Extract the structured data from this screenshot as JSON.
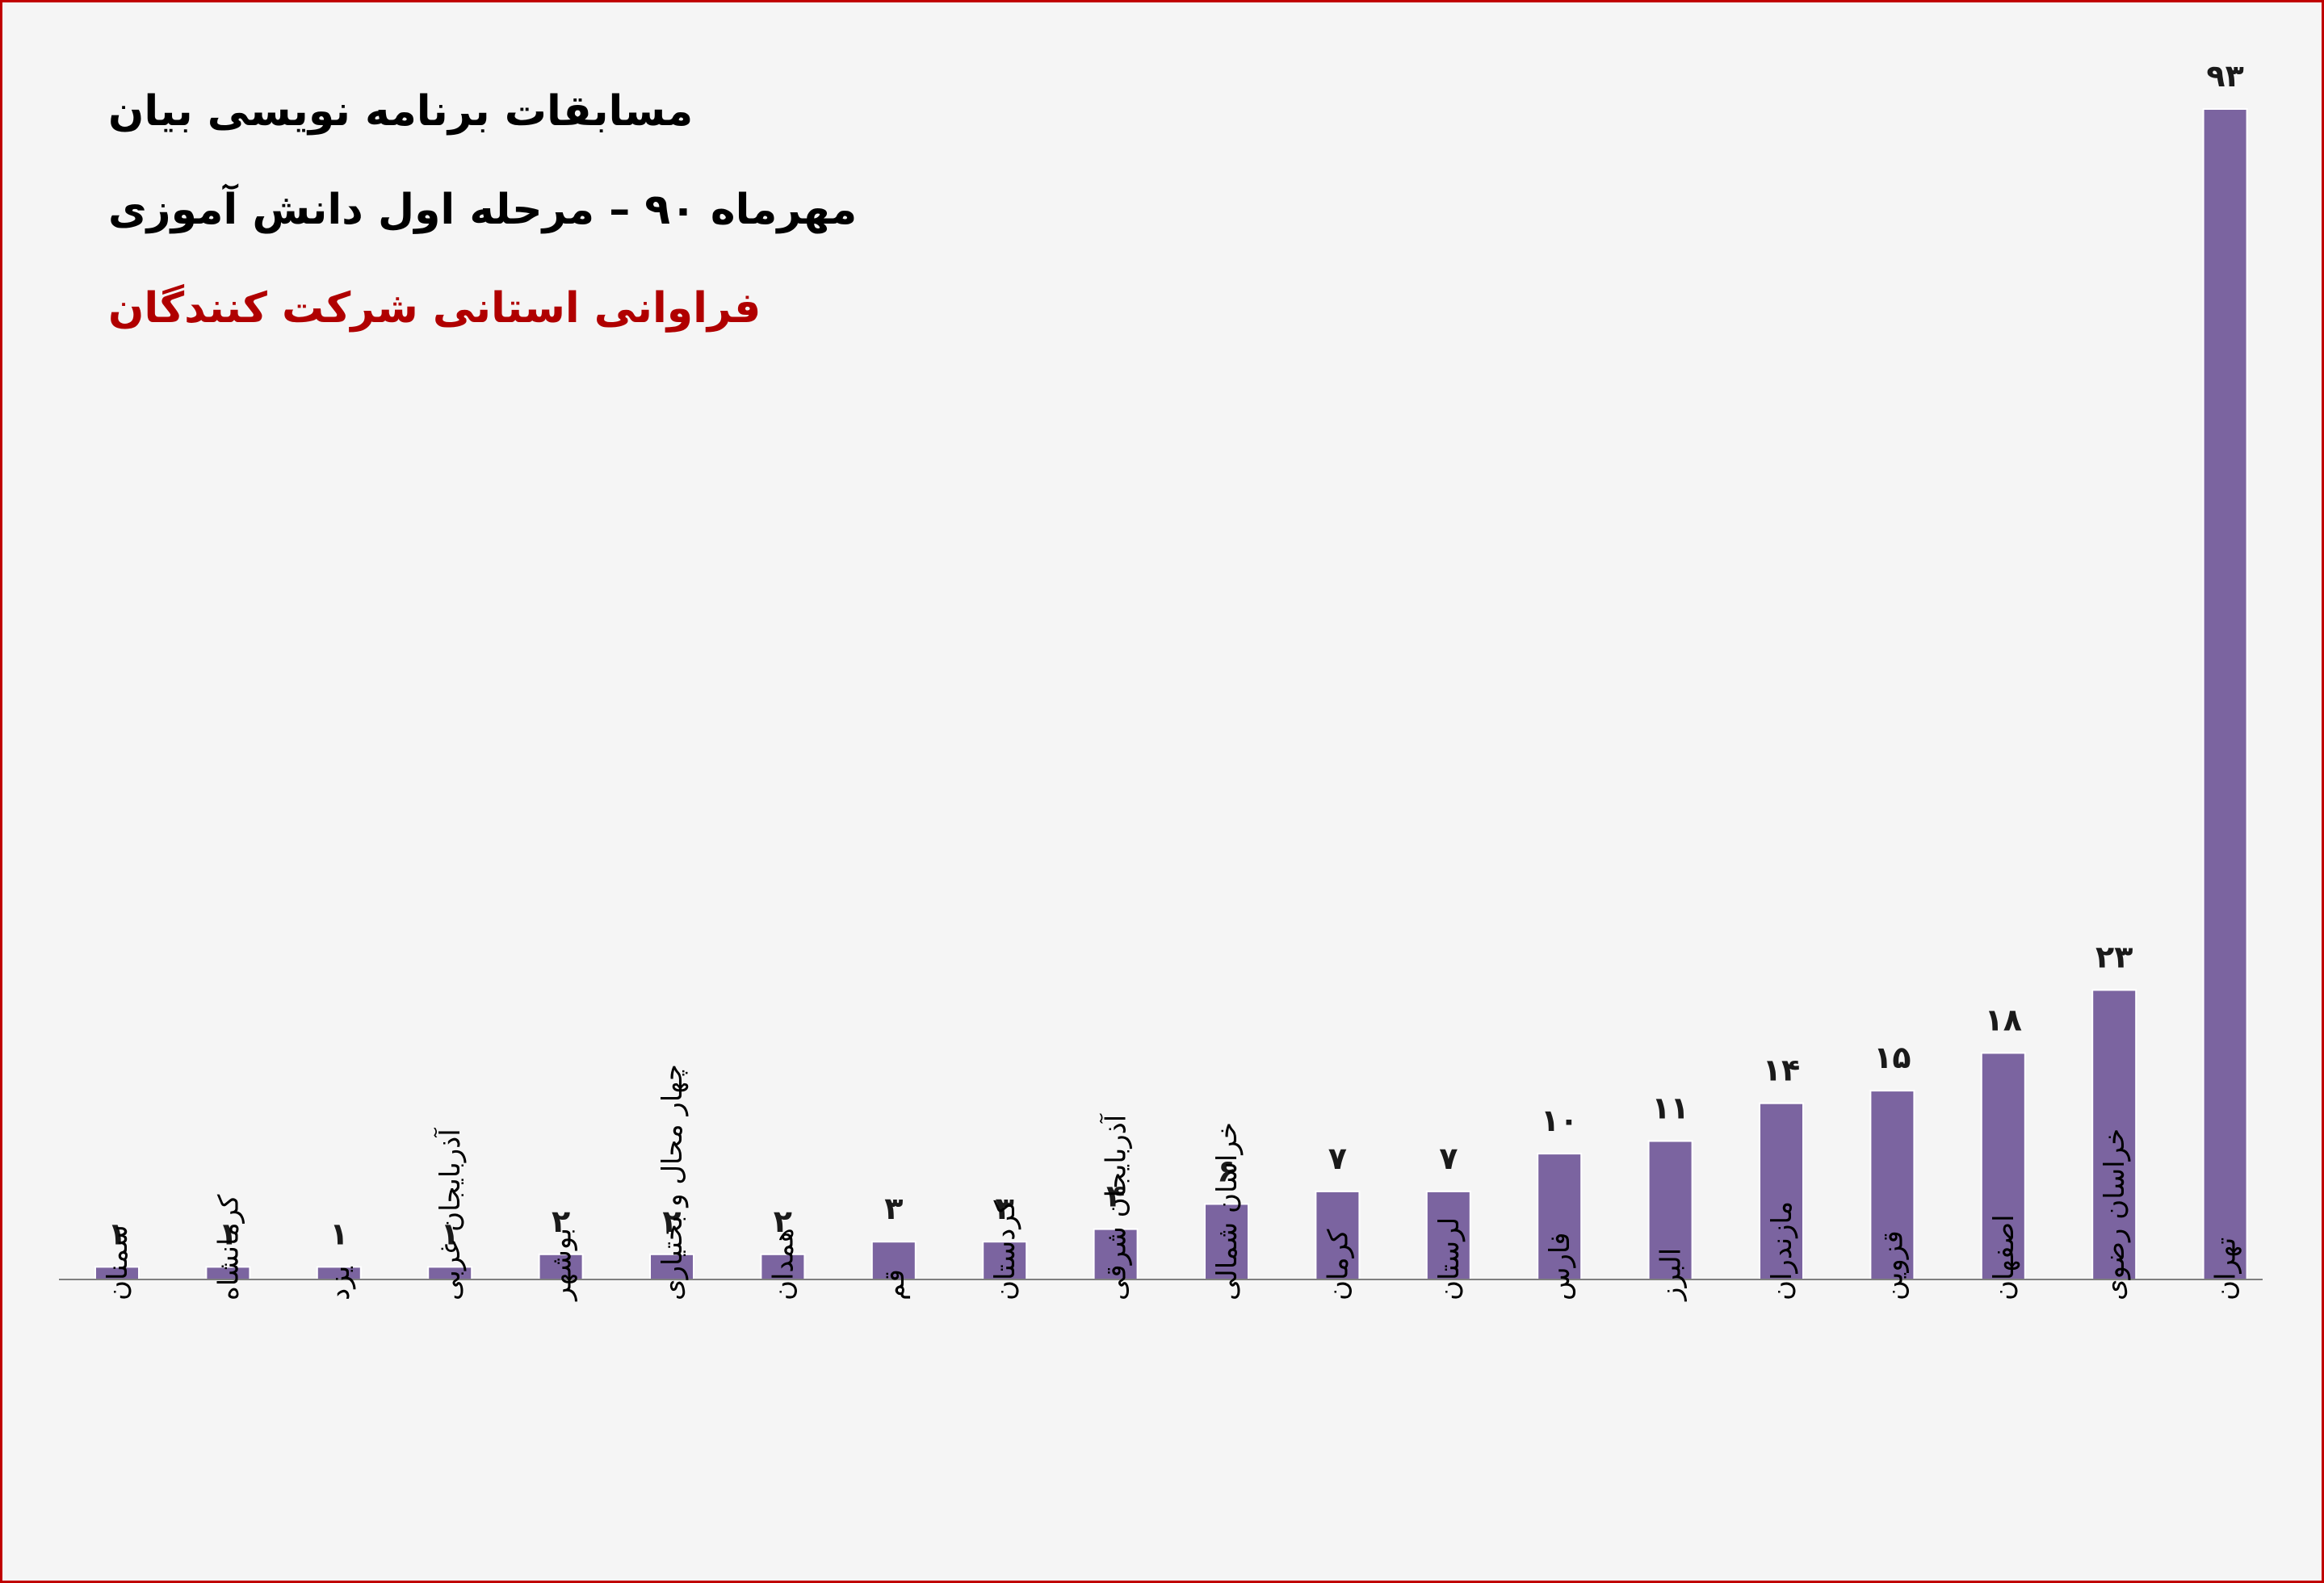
{
  "titles": {
    "line1": "مسابقات برنامه نویسی بیان",
    "line2": "مهرماه ۹۰ – مرحله اول دانش آموزی",
    "line3": "فراوانی استانی شرکت کنندگان"
  },
  "colors": {
    "bar": "#7b64a0",
    "frame": "#c00000",
    "background": "#f5f5f5",
    "title_accent": "#b00000"
  },
  "chart_data": {
    "type": "bar",
    "categories": [
      "سمنان",
      "کرمانشاه",
      "یزد",
      "آذربایجان غربی",
      "بوشهر",
      "چهار محال و بختیاری",
      "همدان",
      "قم",
      "کردستان",
      "آذربایجان شرقی",
      "خراسان شمالی",
      "کرمان",
      "لرستان",
      "فارس",
      "البرز",
      "مازندران",
      "قزوین",
      "اصفهان",
      "خراسان رضوی",
      "تهران"
    ],
    "values": [
      1,
      1,
      1,
      1,
      2,
      2,
      2,
      3,
      3,
      4,
      6,
      7,
      7,
      10,
      11,
      14,
      15,
      18,
      23,
      93
    ],
    "value_labels": [
      "۱",
      "۱",
      "۱",
      "۱",
      "۲",
      "۲",
      "۲",
      "۳",
      "۳",
      "۴",
      "۶",
      "۷",
      "۷",
      "۱۰",
      "۱۱",
      "۱۴",
      "۱۵",
      "۱۸",
      "۲۳",
      "۹۳"
    ],
    "ylim": [
      0,
      93
    ],
    "grid": false,
    "legend": "none",
    "title": "فراوانی استانی شرکت کنندگان"
  }
}
